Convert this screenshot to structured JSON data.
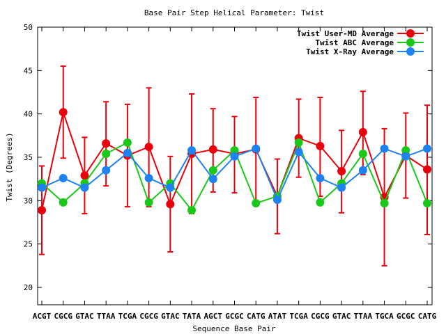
{
  "chart_data": {
    "type": "line",
    "title": "Base Pair Step Helical Parameter: Twist",
    "xlabel": "Sequence Base Pair",
    "ylabel": "Twist (Degrees)",
    "ylim": [
      18,
      50
    ],
    "yticks": [
      20,
      25,
      30,
      35,
      40,
      45,
      50
    ],
    "grid": false,
    "legend_position": "top-right",
    "categories": [
      "ACGT",
      "CGCG",
      "GTAC",
      "TTAA",
      "TCGA",
      "CGCG",
      "GTAC",
      "TATA",
      "AGCT",
      "GCGC",
      "CATG",
      "ATAT",
      "TCGA",
      "CGCG",
      "GTAC",
      "TTAA",
      "TGCA",
      "GCGC",
      "CATG"
    ],
    "series": [
      {
        "name": "Twist User-MD Average",
        "color": "#e8000b",
        "values": [
          28.9,
          40.2,
          32.9,
          36.6,
          35.2,
          36.2,
          29.6,
          35.4,
          35.9,
          35.4,
          35.9,
          30.5,
          37.2,
          36.3,
          33.4,
          37.9,
          30.4,
          35.2,
          33.6
        ],
        "error_low": [
          23.8,
          34.9,
          28.5,
          31.7,
          29.3,
          29.3,
          24.1,
          28.5,
          31.0,
          30.9,
          29.8,
          26.2,
          32.7,
          30.5,
          28.6,
          33.0,
          22.5,
          30.3,
          26.1
        ],
        "error_high": [
          34.0,
          45.5,
          37.3,
          41.4,
          41.1,
          43.0,
          35.1,
          42.3,
          40.6,
          39.7,
          41.9,
          34.8,
          41.7,
          41.9,
          38.1,
          42.6,
          38.3,
          40.1,
          41.0
        ]
      },
      {
        "name": "Twist ABC Average",
        "color": "#19c819",
        "values": [
          32.0,
          29.8,
          32.0,
          35.4,
          36.7,
          29.8,
          32.0,
          28.9,
          33.5,
          35.8,
          29.7,
          30.5,
          36.7,
          29.8,
          32.0,
          35.4,
          29.7,
          35.8,
          29.7
        ]
      },
      {
        "name": "Twist X-Ray Average",
        "color": "#1e82f0",
        "values": [
          31.5,
          32.6,
          31.5,
          33.5,
          35.5,
          32.6,
          31.5,
          35.8,
          32.5,
          35.1,
          36.0,
          30.1,
          35.6,
          32.6,
          31.5,
          33.5,
          36.0,
          35.1,
          36.0
        ]
      }
    ]
  }
}
